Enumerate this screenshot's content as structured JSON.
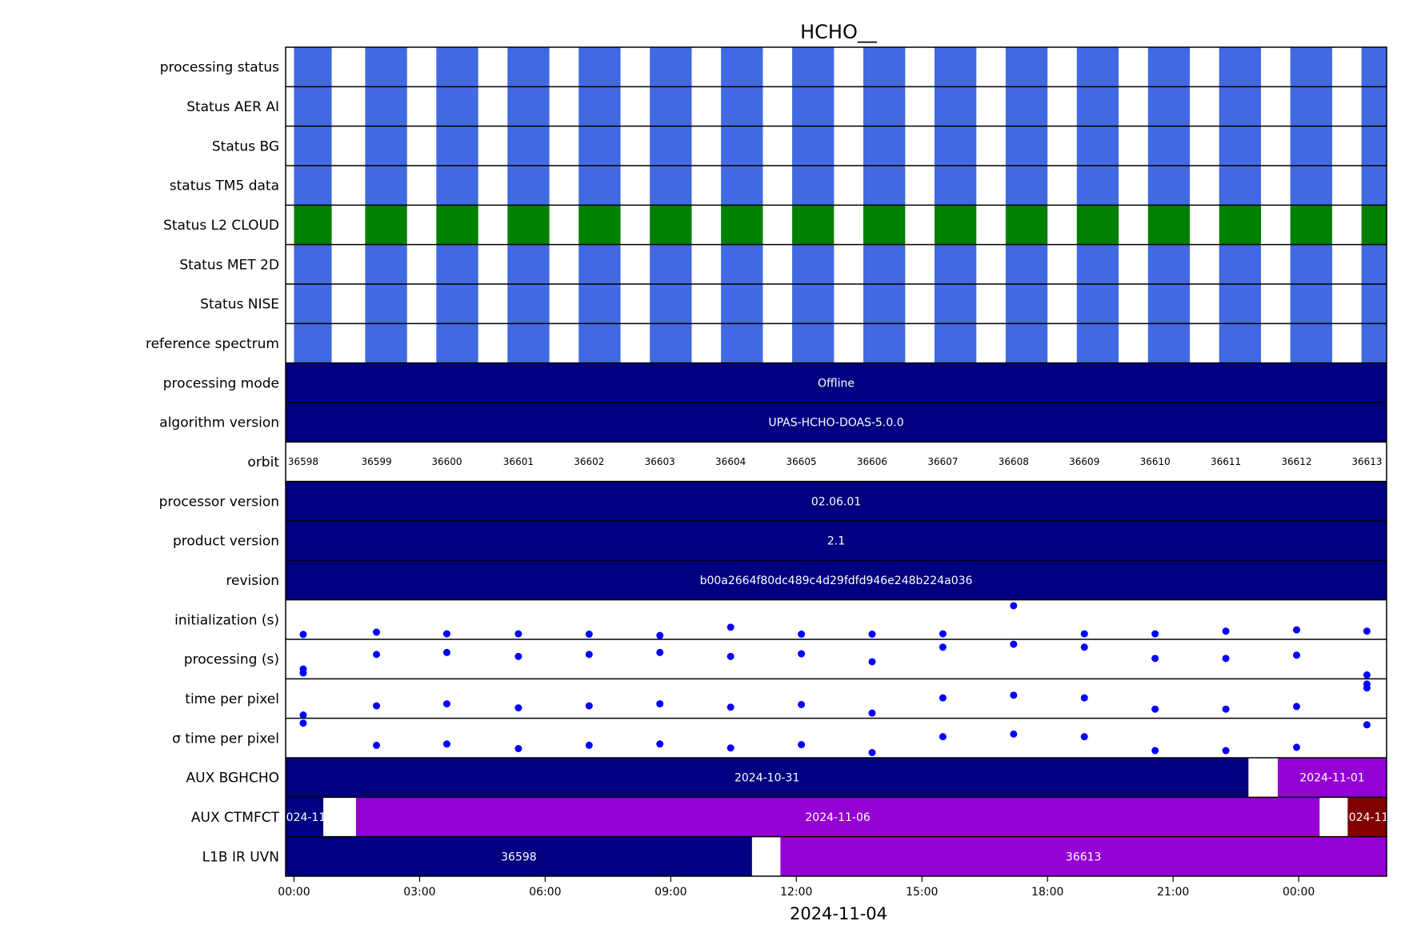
{
  "chart_data": {
    "type": "timeline",
    "title": "HCHO__",
    "xlabel": "2024-11-04",
    "x_ticks": [
      "00:00",
      "03:00",
      "06:00",
      "09:00",
      "12:00",
      "15:00",
      "18:00",
      "21:00",
      "00:00"
    ],
    "x_tick_hours": [
      0,
      3,
      6,
      9,
      12,
      15,
      18,
      21,
      24
    ],
    "x_range_hours": [
      -0.2,
      26.1
    ],
    "grid": false,
    "legend": "none",
    "colors": {
      "status": "#4169e1",
      "cloud": "#008000",
      "navy": "#000080",
      "purple": "#9400d3",
      "darkred": "#800000",
      "points": "#0000ff"
    },
    "orbit_segments": [
      [
        0.0,
        0.9
      ],
      [
        1.7,
        2.7
      ],
      [
        3.4,
        4.4
      ],
      [
        5.1,
        6.1
      ],
      [
        6.8,
        7.8
      ],
      [
        8.5,
        9.5
      ],
      [
        10.2,
        11.2
      ],
      [
        11.9,
        12.9
      ],
      [
        13.6,
        14.6
      ],
      [
        15.3,
        16.3
      ],
      [
        17.0,
        18.0
      ],
      [
        18.7,
        19.7
      ],
      [
        20.4,
        21.4
      ],
      [
        22.1,
        23.1
      ],
      [
        23.8,
        24.8
      ],
      [
        25.5,
        26.1
      ]
    ],
    "orbit_centers": [
      0.22,
      1.97,
      3.65,
      5.36,
      7.05,
      8.74,
      10.43,
      12.12,
      13.81,
      15.5,
      17.19,
      18.88,
      20.57,
      22.26,
      23.95,
      25.63
    ],
    "rows": [
      {
        "label": "processing status",
        "kind": "status",
        "color": "status"
      },
      {
        "label": "Status AER AI",
        "kind": "status",
        "color": "status"
      },
      {
        "label": "Status BG",
        "kind": "status",
        "color": "status"
      },
      {
        "label": "status TM5 data",
        "kind": "status",
        "color": "status"
      },
      {
        "label": "Status L2  CLOUD",
        "kind": "status",
        "color": "cloud"
      },
      {
        "label": "Status MET 2D",
        "kind": "status",
        "color": "status"
      },
      {
        "label": "Status NISE",
        "kind": "status",
        "color": "status"
      },
      {
        "label": "reference spectrum",
        "kind": "status",
        "color": "status"
      },
      {
        "label": "processing mode",
        "kind": "bar",
        "segments": [
          {
            "start": -0.2,
            "end": 26.1,
            "color": "navy",
            "text": "Offline"
          }
        ]
      },
      {
        "label": "algorithm version",
        "kind": "bar",
        "segments": [
          {
            "start": -0.2,
            "end": 26.1,
            "color": "navy",
            "text": "UPAS-HCHO-DOAS-5.0.0"
          }
        ]
      },
      {
        "label": "orbit",
        "kind": "orbit",
        "values": [
          "36598",
          "36599",
          "36600",
          "36601",
          "36602",
          "36603",
          "36604",
          "36605",
          "36606",
          "36607",
          "36608",
          "36609",
          "36610",
          "36611",
          "36612",
          "36613"
        ]
      },
      {
        "label": "processor version",
        "kind": "bar",
        "segments": [
          {
            "start": -0.2,
            "end": 26.1,
            "color": "navy",
            "text": "02.06.01"
          }
        ]
      },
      {
        "label": "product version",
        "kind": "bar",
        "segments": [
          {
            "start": -0.2,
            "end": 26.1,
            "color": "navy",
            "text": "2.1"
          }
        ]
      },
      {
        "label": "revision",
        "kind": "bar",
        "segments": [
          {
            "start": -0.2,
            "end": 26.1,
            "color": "navy",
            "text": "b00a2664f80dc489c4d29fdfd946e248b224a036"
          }
        ]
      },
      {
        "label": "initialization (s)",
        "kind": "scatter",
        "values": [
          0.05,
          0.12,
          0.07,
          0.07,
          0.06,
          0.02,
          0.27,
          0.06,
          0.06,
          0.07,
          0.92,
          0.07,
          0.07,
          0.15,
          0.19,
          0.15
        ]
      },
      {
        "label": "processing (s)",
        "kind": "scatter",
        "values": [
          0.08,
          0.64,
          0.7,
          0.58,
          0.64,
          0.7,
          0.58,
          0.66,
          0.42,
          0.86,
          0.95,
          0.86,
          0.52,
          0.52,
          0.62,
          0.02
        ],
        "extra": [
          [
            0.22,
            0.2
          ]
        ]
      },
      {
        "label": "time per pixel",
        "kind": "scatter",
        "values": [
          0.0,
          0.28,
          0.34,
          0.22,
          0.28,
          0.34,
          0.24,
          0.32,
          0.06,
          0.52,
          0.6,
          0.52,
          0.18,
          0.18,
          0.26,
          0.94
        ],
        "extra": [
          [
            25.63,
            0.82
          ]
        ]
      },
      {
        "label": "σ time per pixel",
        "kind": "scatter",
        "values": [
          0.95,
          0.28,
          0.32,
          0.18,
          0.28,
          0.32,
          0.2,
          0.3,
          0.06,
          0.54,
          0.62,
          0.54,
          0.12,
          0.12,
          0.22,
          0.9
        ]
      },
      {
        "label": "AUX BGHCHO",
        "kind": "bar",
        "segments": [
          {
            "start": -0.2,
            "end": 22.8,
            "color": "navy",
            "text": "2024-10-31"
          },
          {
            "start": 23.5,
            "end": 26.1,
            "color": "purple",
            "text": "2024-11-01"
          }
        ]
      },
      {
        "label": "AUX CTMFCT",
        "kind": "bar",
        "segments": [
          {
            "start": -0.2,
            "end": 0.7,
            "color": "navy",
            "text": "2024-11-"
          },
          {
            "start": 1.48,
            "end": 24.5,
            "color": "purple",
            "text": "2024-11-06"
          },
          {
            "start": 25.17,
            "end": 26.1,
            "color": "darkred",
            "text": "2024-11-"
          }
        ]
      },
      {
        "label": "L1B IR UVN",
        "kind": "bar",
        "segments": [
          {
            "start": -0.2,
            "end": 10.94,
            "color": "navy",
            "text": "36598"
          },
          {
            "start": 11.62,
            "end": 26.1,
            "color": "purple",
            "text": "36613"
          }
        ]
      }
    ]
  }
}
